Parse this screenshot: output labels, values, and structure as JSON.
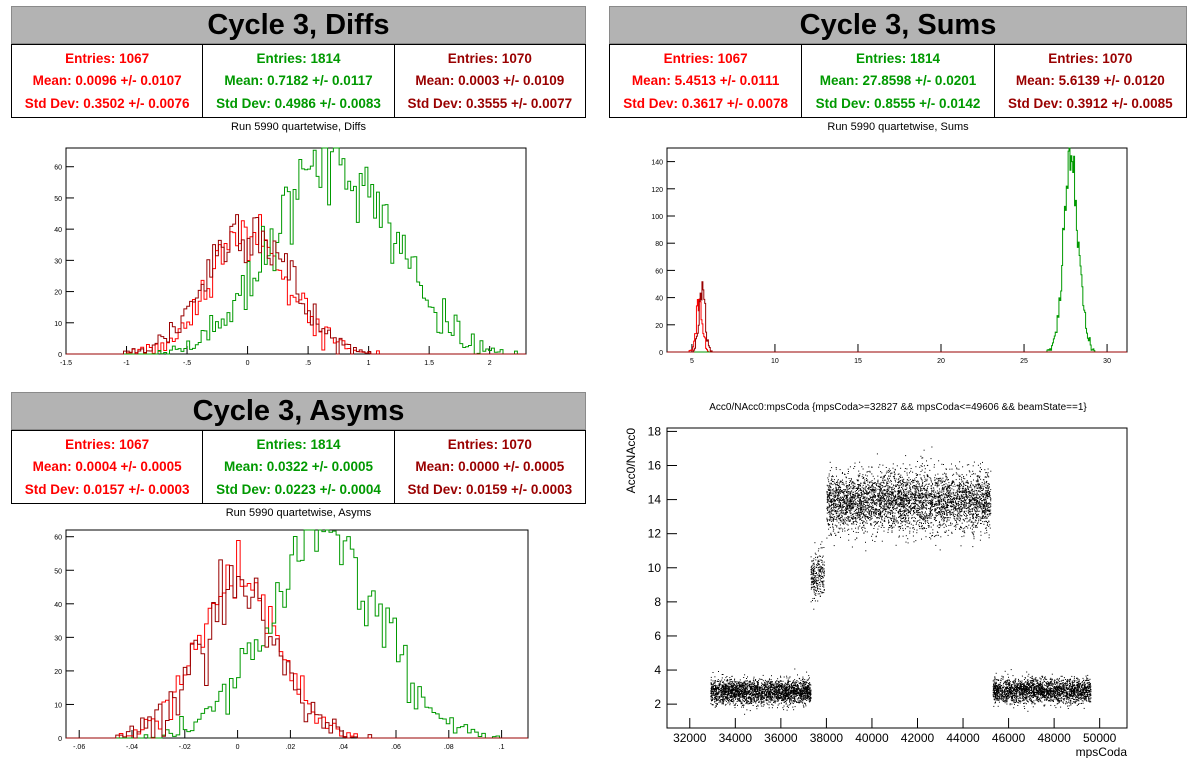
{
  "colors": {
    "red": "#ff0000",
    "green": "#009900",
    "darkred": "#990000",
    "titlebar": "#b3b3b3"
  },
  "diffs": {
    "title": "Cycle 3, Diffs",
    "subtitle": "Run 5990 quartetwise, Diffs",
    "stats": [
      {
        "color": "#ff0000",
        "entries": "Entries: 1067",
        "mean": "Mean: 0.0096 +/- 0.0107",
        "std": "Std Dev: 0.3502 +/- 0.0076"
      },
      {
        "color": "#009900",
        "entries": "Entries: 1814",
        "mean": "Mean: 0.7182 +/- 0.0117",
        "std": "Std Dev: 0.4986 +/- 0.0083"
      },
      {
        "color": "#990000",
        "entries": "Entries: 1070",
        "mean": "Mean: 0.0003 +/- 0.0109",
        "std": "Std Dev: 0.3555 +/- 0.0077"
      }
    ]
  },
  "sums": {
    "title": "Cycle 3, Sums",
    "subtitle": "Run 5990 quartetwise, Sums",
    "stats": [
      {
        "color": "#ff0000",
        "entries": "Entries: 1067",
        "mean": "Mean: 5.4513 +/- 0.0111",
        "std": "Std Dev: 0.3617 +/- 0.0078"
      },
      {
        "color": "#009900",
        "entries": "Entries: 1814",
        "mean": "Mean: 27.8598 +/- 0.0201",
        "std": "Std Dev: 0.8555 +/- 0.0142"
      },
      {
        "color": "#990000",
        "entries": "Entries: 1070",
        "mean": "Mean: 5.6139 +/- 0.0120",
        "std": "Std Dev: 0.3912 +/- 0.0085"
      }
    ]
  },
  "asyms": {
    "title": "Cycle 3, Asyms",
    "subtitle": "Run 5990 quartetwise, Asyms",
    "stats": [
      {
        "color": "#ff0000",
        "entries": "Entries: 1067",
        "mean": "Mean: 0.0004 +/- 0.0005",
        "std": "Std Dev: 0.0157 +/- 0.0003"
      },
      {
        "color": "#009900",
        "entries": "Entries: 1814",
        "mean": "Mean: 0.0322 +/- 0.0005",
        "std": "Std Dev: 0.0223 +/- 0.0004"
      },
      {
        "color": "#990000",
        "entries": "Entries: 1070",
        "mean": "Mean: 0.0000 +/- 0.0005",
        "std": "Std Dev: 0.0159 +/- 0.0003"
      }
    ]
  },
  "scatter": {
    "title": "Acc0/NAcc0:mpsCoda {mpsCoda>=32827 && mpsCoda<=49606 && beamState==1}",
    "xlabel": "mpsCoda",
    "ylabel": "Acc0/NAcc0"
  },
  "chart_data": [
    {
      "type": "histogram",
      "name": "diffs",
      "xlim": [
        -1.5,
        2.3
      ],
      "ylim": [
        0,
        66
      ],
      "xticks": [
        -1.5,
        -1,
        -0.5,
        0,
        0.5,
        1,
        1.5,
        2
      ],
      "yticks": [
        0,
        10,
        20,
        30,
        40,
        50,
        60
      ],
      "grid": false,
      "series": [
        {
          "color": "#ff0000",
          "entries": 1067,
          "mean": 0.0096,
          "std": 0.3502,
          "peak": 39
        },
        {
          "color": "#009900",
          "entries": 1814,
          "mean": 0.7182,
          "std": 0.4986,
          "peak": 64
        },
        {
          "color": "#990000",
          "entries": 1070,
          "mean": 0.0003,
          "std": 0.3555,
          "peak": 42
        }
      ]
    },
    {
      "type": "histogram",
      "name": "sums",
      "xlim": [
        3.5,
        31.2
      ],
      "ylim": [
        0,
        150
      ],
      "xticks": [
        5,
        10,
        15,
        20,
        25,
        30
      ],
      "yticks": [
        0,
        20,
        40,
        60,
        80,
        100,
        120,
        140
      ],
      "grid": false,
      "series": [
        {
          "color": "#ff0000",
          "entries": 1067,
          "mean": 5.4513,
          "std": 0.3617,
          "peak": 40
        },
        {
          "color": "#009900",
          "entries": 1814,
          "mean": 27.8598,
          "std": 0.8555,
          "peak": 147
        },
        {
          "color": "#990000",
          "entries": 1070,
          "mean": 5.6139,
          "std": 0.3912,
          "peak": 44
        }
      ]
    },
    {
      "type": "histogram",
      "name": "asyms",
      "xlim": [
        -0.065,
        0.11
      ],
      "ylim": [
        0,
        62
      ],
      "xticks": [
        -0.06,
        -0.04,
        -0.02,
        0,
        0.02,
        0.04,
        0.06,
        0.08,
        0.1
      ],
      "yticks": [
        0,
        10,
        20,
        30,
        40,
        50,
        60
      ],
      "grid": false,
      "series": [
        {
          "color": "#ff0000",
          "entries": 1067,
          "mean": 0.0004,
          "std": 0.0157,
          "peak": 48
        },
        {
          "color": "#009900",
          "entries": 1814,
          "mean": 0.0322,
          "std": 0.0223,
          "peak": 60
        },
        {
          "color": "#990000",
          "entries": 1070,
          "mean": 0.0,
          "std": 0.0159,
          "peak": 45
        }
      ]
    },
    {
      "type": "scatter",
      "name": "acc0-vs-mpscoda",
      "xlim": [
        31000,
        51200
      ],
      "ylim": [
        0.6,
        18.2
      ],
      "xticks": [
        32000,
        34000,
        36000,
        38000,
        40000,
        42000,
        44000,
        46000,
        48000,
        50000
      ],
      "yticks": [
        2,
        4,
        6,
        8,
        10,
        12,
        14,
        16,
        18
      ],
      "grid": false,
      "clusters": [
        {
          "x": [
            32900,
            37300
          ],
          "y_center": 2.75,
          "y_spread": 0.35,
          "n": 2600
        },
        {
          "x": [
            37300,
            37900
          ],
          "y_center": 9.6,
          "y_spread": 0.7,
          "n": 260
        },
        {
          "x": [
            38000,
            45200
          ],
          "y_center": 13.9,
          "y_spread": 0.85,
          "n": 4200
        },
        {
          "x": [
            45300,
            49600
          ],
          "y_center": 2.8,
          "y_spread": 0.35,
          "n": 2400
        }
      ],
      "color": "#000000"
    }
  ]
}
